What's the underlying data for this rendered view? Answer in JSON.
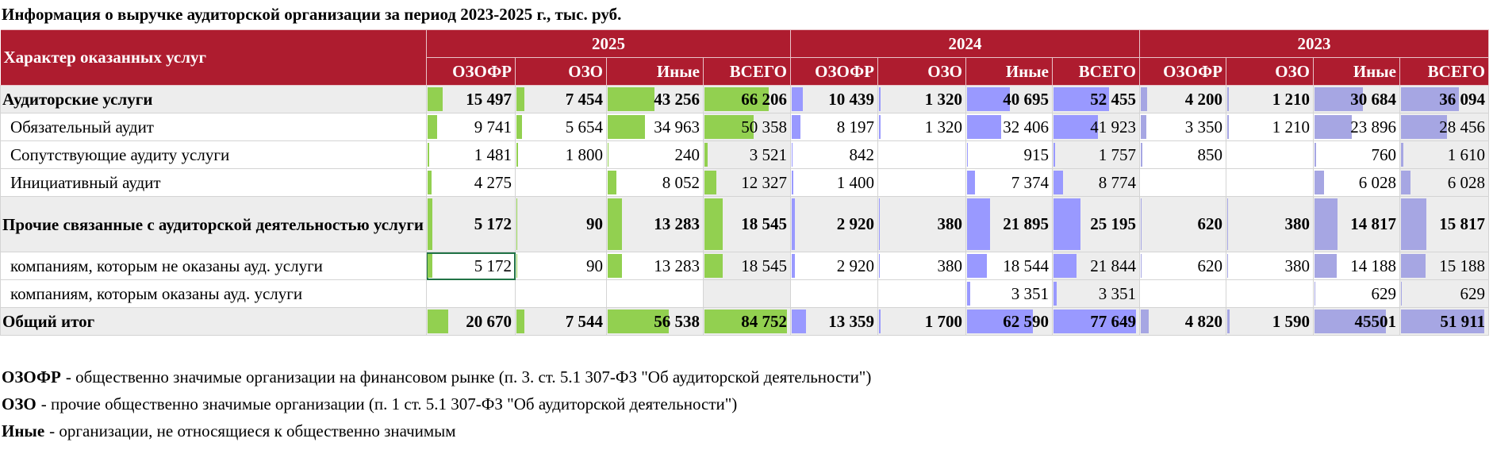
{
  "header": {
    "title": "Информация о выручке аудиторской организации за период 2023-2025 г., тыс. руб."
  },
  "table": {
    "row_header": "Характер оказанных услуг",
    "column_groups": [
      {
        "name": "2025",
        "bar_color": "#92d050",
        "columns": [
          "ОЗОФР",
          "ОЗО",
          "Иные",
          "ВСЕГО"
        ]
      },
      {
        "name": "2024",
        "bar_color": "#9999ff",
        "columns": [
          "ОЗОФР",
          "ОЗО",
          "Иные",
          "ВСЕГО"
        ]
      },
      {
        "name": "2023",
        "bar_color": "#a6a6e3",
        "columns": [
          "ОЗОФР",
          "ОЗО",
          "Иные",
          "ВСЕГО"
        ]
      }
    ],
    "rows": [
      {
        "label": "Аудиторские услуги",
        "bold": true,
        "cells": [
          {
            "value": 15497,
            "label": "15 497"
          },
          {
            "value": 7454,
            "label": "7 454"
          },
          {
            "value": 43256,
            "label": "43 256"
          },
          {
            "value": 66206,
            "label": "66 206"
          },
          {
            "value": 10439,
            "label": "10 439"
          },
          {
            "value": 1320,
            "label": "1 320"
          },
          {
            "value": 40695,
            "label": "40 695"
          },
          {
            "value": 52455,
            "label": "52 455"
          },
          {
            "value": 4200,
            "label": "4 200"
          },
          {
            "value": 1210,
            "label": "1 210"
          },
          {
            "value": 30684,
            "label": "30 684"
          },
          {
            "value": 36094,
            "label": "36 094"
          }
        ]
      },
      {
        "label": "Обязательный аудит",
        "bold": false,
        "cells": [
          {
            "value": 9741,
            "label": "9 741"
          },
          {
            "value": 5654,
            "label": "5 654"
          },
          {
            "value": 34963,
            "label": "34 963"
          },
          {
            "value": 50358,
            "label": "50 358"
          },
          {
            "value": 8197,
            "label": "8 197"
          },
          {
            "value": 1320,
            "label": "1 320"
          },
          {
            "value": 32406,
            "label": "32 406"
          },
          {
            "value": 41923,
            "label": "41 923"
          },
          {
            "value": 3350,
            "label": "3 350"
          },
          {
            "value": 1210,
            "label": "1 210"
          },
          {
            "value": 23896,
            "label": "23 896"
          },
          {
            "value": 28456,
            "label": "28 456"
          }
        ]
      },
      {
        "label": "Сопутствующие аудиту услуги",
        "bold": false,
        "cells": [
          {
            "value": 1481,
            "label": "1 481"
          },
          {
            "value": 1800,
            "label": "1 800"
          },
          240,
          {
            "value": 3521,
            "label": "3 521"
          },
          842,
          null,
          915,
          {
            "value": 1757,
            "label": "1 757"
          },
          850,
          null,
          760,
          {
            "value": 1610,
            "label": "1 610"
          }
        ]
      },
      {
        "label": "Инициативный аудит",
        "bold": false,
        "cells": [
          {
            "value": 4275,
            "label": "4 275"
          },
          null,
          {
            "value": 8052,
            "label": "8 052"
          },
          {
            "value": 12327,
            "label": "12 327"
          },
          {
            "value": 1400,
            "label": "1 400"
          },
          null,
          {
            "value": 7374,
            "label": "7 374"
          },
          {
            "value": 8774,
            "label": "8 774"
          },
          null,
          null,
          {
            "value": 6028,
            "label": "6 028"
          },
          {
            "value": 6028,
            "label": "6 028"
          }
        ]
      },
      {
        "label": "Прочие связанные с аудиторской деятельностью услуги",
        "bold": true,
        "cells": [
          {
            "value": 5172,
            "label": "5 172"
          },
          90,
          {
            "value": 13283,
            "label": "13 283"
          },
          {
            "value": 18545,
            "label": "18 545"
          },
          {
            "value": 2920,
            "label": "2 920"
          },
          380,
          {
            "value": 21895,
            "label": "21 895"
          },
          {
            "value": 25195,
            "label": "25 195"
          },
          620,
          380,
          {
            "value": 14817,
            "label": "14 817"
          },
          {
            "value": 15817,
            "label": "15 817"
          }
        ]
      },
      {
        "label": "компаниям, которым не оказаны ауд. услуги",
        "bold": false,
        "cells": [
          {
            "value": 5172,
            "label": "5 172"
          },
          90,
          {
            "value": 13283,
            "label": "13 283"
          },
          {
            "value": 18545,
            "label": "18 545"
          },
          {
            "value": 2920,
            "label": "2 920"
          },
          380,
          {
            "value": 18544,
            "label": "18 544"
          },
          {
            "value": 21844,
            "label": "21 844"
          },
          620,
          380,
          {
            "value": 14188,
            "label": "14 188"
          },
          {
            "value": 15188,
            "label": "15 188"
          }
        ]
      },
      {
        "label": "компаниям, которым оказаны ауд. услуги",
        "bold": false,
        "cells": [
          null,
          null,
          null,
          null,
          null,
          null,
          {
            "value": 3351,
            "label": "3 351"
          },
          {
            "value": 3351,
            "label": "3 351"
          },
          null,
          null,
          629,
          629
        ]
      },
      {
        "label": "Общий итог",
        "bold": true,
        "cells": [
          {
            "value": 20670,
            "label": "20 670"
          },
          {
            "value": 7544,
            "label": "7 544"
          },
          {
            "value": 56538,
            "label": "56 538"
          },
          {
            "value": 84752,
            "label": "84 752"
          },
          {
            "value": 13359,
            "label": "13 359"
          },
          {
            "value": 1700,
            "label": "1 700"
          },
          {
            "value": 62590,
            "label": "62 590"
          },
          {
            "value": 77649,
            "label": "77 649"
          },
          {
            "value": 4820,
            "label": "4 820"
          },
          {
            "value": 1590,
            "label": "1 590"
          },
          45501,
          {
            "value": 51911,
            "label": "51 911"
          }
        ]
      }
    ]
  },
  "notes": [
    {
      "term": "ОЗОФР",
      "text": "- общественно значимые организации на финансовом рынке (п. 3. ст. 5.1 307-ФЗ \"Об аудиторской деятельности\")"
    },
    {
      "term": "ОЗО",
      "text": "- прочие общественно значимые организации (п. 1 ст. 5.1 307-ФЗ \"Об аудиторской деятельности\")"
    },
    {
      "term": "Иные",
      "text": "- организации, не относящиеся к общественно значимым"
    }
  ]
}
